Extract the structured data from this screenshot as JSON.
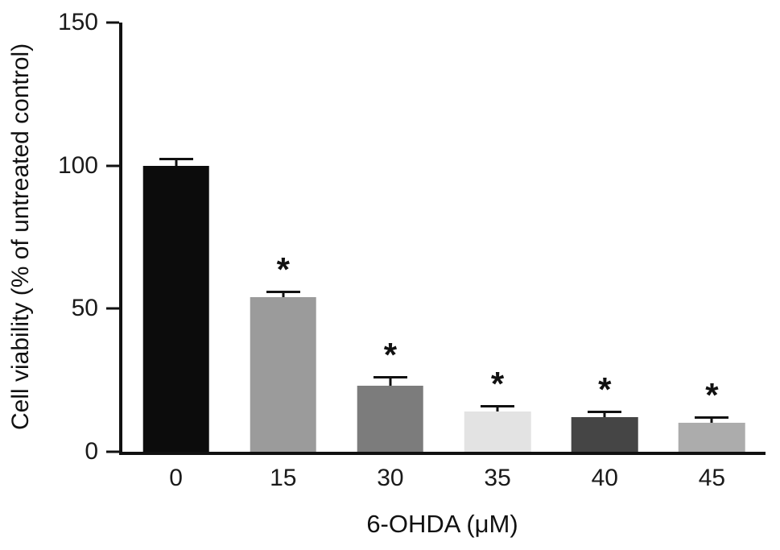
{
  "chart_data": {
    "type": "bar",
    "title": "",
    "xlabel": "6-OHDA (μM)",
    "ylabel": "Cell viability (% of untreated control)",
    "categories": [
      "0",
      "15",
      "30",
      "35",
      "40",
      "45"
    ],
    "values": [
      100,
      54,
      23,
      14,
      12,
      10
    ],
    "errors": [
      2,
      1.5,
      2.5,
      1.5,
      1.5,
      1.5
    ],
    "significance": [
      "",
      "*",
      "*",
      "*",
      "*",
      "*"
    ],
    "bar_colors": [
      "#0c0c0c",
      "#9b9b9b",
      "#7c7c7c",
      "#e3e3e3",
      "#454545",
      "#acacac"
    ],
    "axis_color": "#111111",
    "ylim": [
      0,
      150
    ],
    "yticks": [
      0,
      50,
      100,
      150
    ],
    "grid": false,
    "legend_position": "none"
  }
}
